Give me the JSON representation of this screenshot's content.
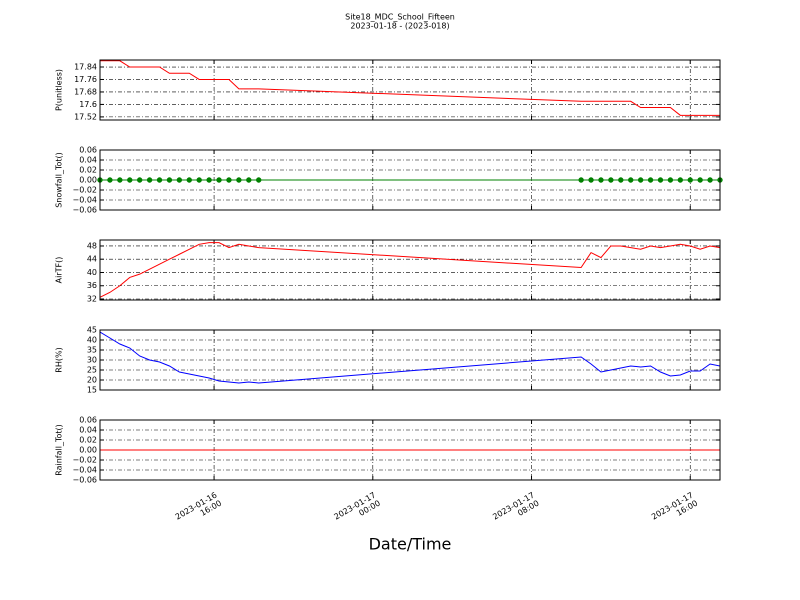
{
  "chart_data": [
    {
      "type": "line",
      "title": "Site18_MDC_School_Fifteen",
      "subtitle": "2023-01-18 - (2023-018)",
      "ylabel": "P(unitless)",
      "color": "#ff0000",
      "marker": false,
      "x": [
        "2023-01-16 10:15",
        "2023-01-16 10:45",
        "2023-01-16 11:15",
        "2023-01-16 11:45",
        "2023-01-16 12:15",
        "2023-01-16 12:45",
        "2023-01-16 13:15",
        "2023-01-16 13:45",
        "2023-01-16 14:15",
        "2023-01-16 14:45",
        "2023-01-16 15:15",
        "2023-01-16 15:45",
        "2023-01-16 16:15",
        "2023-01-16 16:45",
        "2023-01-16 17:15",
        "2023-01-16 17:45",
        "2023-01-16 18:15",
        "2023-01-17 10:30",
        "2023-01-17 11:00",
        "2023-01-17 11:30",
        "2023-01-17 12:00",
        "2023-01-17 12:30",
        "2023-01-17 13:00",
        "2023-01-17 13:30",
        "2023-01-17 14:00",
        "2023-01-17 14:30",
        "2023-01-17 15:00",
        "2023-01-17 15:30",
        "2023-01-17 16:00",
        "2023-01-17 16:30",
        "2023-01-17 17:00",
        "2023-01-17 17:30"
      ],
      "values": [
        17.88,
        17.88,
        17.88,
        17.84,
        17.84,
        17.84,
        17.84,
        17.8,
        17.8,
        17.8,
        17.76,
        17.76,
        17.76,
        17.76,
        17.7,
        17.7,
        17.7,
        17.62,
        17.62,
        17.62,
        17.62,
        17.62,
        17.62,
        17.58,
        17.58,
        17.58,
        17.58,
        17.53,
        17.53,
        17.53,
        17.53,
        17.53
      ],
      "xlim": [
        "2023-01-16 10:15",
        "2023-01-17 17:30"
      ],
      "ylim": [
        17.5,
        17.885
      ],
      "yticks": [
        17.52,
        17.6,
        {
          "value": 17.68,
          "label": "17.68"
        },
        17.76,
        17.84
      ]
    },
    {
      "type": "line",
      "ylabel": "Snowfall_Tot()",
      "color": "#008000",
      "marker": true,
      "x": [
        "2023-01-16 10:15",
        "2023-01-16 10:45",
        "2023-01-16 11:15",
        "2023-01-16 11:45",
        "2023-01-16 12:15",
        "2023-01-16 12:45",
        "2023-01-16 13:15",
        "2023-01-16 13:45",
        "2023-01-16 14:15",
        "2023-01-16 14:45",
        "2023-01-16 15:15",
        "2023-01-16 15:45",
        "2023-01-16 16:15",
        "2023-01-16 16:45",
        "2023-01-16 17:15",
        "2023-01-16 17:45",
        "2023-01-16 18:15",
        "2023-01-17 10:30",
        "2023-01-17 11:00",
        "2023-01-17 11:30",
        "2023-01-17 12:00",
        "2023-01-17 12:30",
        "2023-01-17 13:00",
        "2023-01-17 13:30",
        "2023-01-17 14:00",
        "2023-01-17 14:30",
        "2023-01-17 15:00",
        "2023-01-17 15:30",
        "2023-01-17 16:00",
        "2023-01-17 16:30",
        "2023-01-17 17:00",
        "2023-01-17 17:30"
      ],
      "values": [
        0,
        0,
        0,
        0,
        0,
        0,
        0,
        0,
        0,
        0,
        0,
        0,
        0,
        0,
        0,
        0,
        0,
        0,
        0,
        0,
        0,
        0,
        0,
        0,
        0,
        0,
        0,
        0,
        0,
        0,
        0,
        0
      ],
      "xlim": [
        "2023-01-16 10:15",
        "2023-01-17 17:30"
      ],
      "ylim": [
        -0.06,
        0.06
      ],
      "yticks": [
        {
          "value": -0.06,
          "label": "−0.06"
        },
        {
          "value": -0.04,
          "label": "−0.04"
        },
        {
          "value": -0.02,
          "label": "−0.02"
        },
        {
          "value": 0,
          "label": "0.00"
        },
        0.02,
        0.04,
        0.06
      ]
    },
    {
      "type": "line",
      "ylabel": "AirTF()",
      "color": "#ff0000",
      "marker": false,
      "x": [
        "2023-01-16 10:15",
        "2023-01-16 10:45",
        "2023-01-16 11:15",
        "2023-01-16 11:45",
        "2023-01-16 12:15",
        "2023-01-16 12:45",
        "2023-01-16 13:15",
        "2023-01-16 13:45",
        "2023-01-16 14:15",
        "2023-01-16 14:45",
        "2023-01-16 15:15",
        "2023-01-16 15:45",
        "2023-01-16 16:15",
        "2023-01-16 16:45",
        "2023-01-16 17:15",
        "2023-01-16 17:45",
        "2023-01-16 18:15",
        "2023-01-17 10:30",
        "2023-01-17 11:00",
        "2023-01-17 11:30",
        "2023-01-17 12:00",
        "2023-01-17 12:30",
        "2023-01-17 13:00",
        "2023-01-17 13:30",
        "2023-01-17 14:00",
        "2023-01-17 14:30",
        "2023-01-17 15:00",
        "2023-01-17 15:30",
        "2023-01-17 16:00",
        "2023-01-17 16:30",
        "2023-01-17 17:00",
        "2023-01-17 17:30"
      ],
      "values": [
        32.5,
        34,
        36,
        38.5,
        39.5,
        41,
        42.5,
        44,
        45.5,
        47,
        48.5,
        49,
        49,
        47.5,
        48.5,
        48,
        47.5,
        41.5,
        46,
        44.5,
        48,
        48,
        47.5,
        47,
        48,
        47.5,
        48,
        48.5,
        48,
        47,
        48,
        47.5
      ],
      "xlim": [
        "2023-01-16 10:15",
        "2023-01-17 17:30"
      ],
      "ylim": [
        31.7,
        49.8
      ],
      "yticks": [
        32,
        36,
        40,
        44,
        48
      ]
    },
    {
      "type": "line",
      "ylabel": "RH(%)",
      "color": "#0000ff",
      "marker": false,
      "x": [
        "2023-01-16 10:15",
        "2023-01-16 10:45",
        "2023-01-16 11:15",
        "2023-01-16 11:45",
        "2023-01-16 12:15",
        "2023-01-16 12:45",
        "2023-01-16 13:15",
        "2023-01-16 13:45",
        "2023-01-16 14:15",
        "2023-01-16 14:45",
        "2023-01-16 15:15",
        "2023-01-16 15:45",
        "2023-01-16 16:15",
        "2023-01-16 16:45",
        "2023-01-16 17:15",
        "2023-01-16 17:45",
        "2023-01-16 18:15",
        "2023-01-17 10:30",
        "2023-01-17 11:00",
        "2023-01-17 11:30",
        "2023-01-17 12:00",
        "2023-01-17 12:30",
        "2023-01-17 13:00",
        "2023-01-17 13:30",
        "2023-01-17 14:00",
        "2023-01-17 14:30",
        "2023-01-17 15:00",
        "2023-01-17 15:30",
        "2023-01-17 16:00",
        "2023-01-17 16:30",
        "2023-01-17 17:00",
        "2023-01-17 17:30"
      ],
      "values": [
        44,
        41,
        38,
        36,
        32,
        30,
        29,
        27,
        24,
        23,
        22,
        21,
        19.5,
        19,
        18.5,
        19,
        18.5,
        31.5,
        28,
        24,
        25,
        26,
        27,
        26.5,
        27,
        24,
        22,
        22.5,
        24.5,
        24.5,
        28,
        27
      ],
      "xlim": [
        "2023-01-16 10:15",
        "2023-01-17 17:30"
      ],
      "ylim": [
        15,
        45
      ],
      "yticks": [
        15,
        20,
        25,
        30,
        35,
        40,
        45
      ]
    },
    {
      "type": "line",
      "ylabel": "Rainfall_Tot()",
      "xlabel": "Date/Time",
      "color": "#ff0000",
      "marker": false,
      "x": [
        "2023-01-16 10:15",
        "2023-01-16 10:45",
        "2023-01-16 11:15",
        "2023-01-16 11:45",
        "2023-01-16 12:15",
        "2023-01-16 12:45",
        "2023-01-16 13:15",
        "2023-01-16 13:45",
        "2023-01-16 14:15",
        "2023-01-16 14:45",
        "2023-01-16 15:15",
        "2023-01-16 15:45",
        "2023-01-16 16:15",
        "2023-01-16 16:45",
        "2023-01-16 17:15",
        "2023-01-16 17:45",
        "2023-01-16 18:15",
        "2023-01-17 10:30",
        "2023-01-17 11:00",
        "2023-01-17 11:30",
        "2023-01-17 12:00",
        "2023-01-17 12:30",
        "2023-01-17 13:00",
        "2023-01-17 13:30",
        "2023-01-17 14:00",
        "2023-01-17 14:30",
        "2023-01-17 15:00",
        "2023-01-17 15:30",
        "2023-01-17 16:00",
        "2023-01-17 16:30",
        "2023-01-17 17:00",
        "2023-01-17 17:30"
      ],
      "values": [
        0,
        0,
        0,
        0,
        0,
        0,
        0,
        0,
        0,
        0,
        0,
        0,
        0,
        0,
        0,
        0,
        0,
        0,
        0,
        0,
        0,
        0,
        0,
        0,
        0,
        0,
        0,
        0,
        0,
        0,
        0,
        0
      ],
      "xlim": [
        "2023-01-16 10:15",
        "2023-01-17 17:30"
      ],
      "ylim": [
        -0.06,
        0.06
      ],
      "yticks": [
        {
          "value": -0.06,
          "label": "−0.06"
        },
        {
          "value": -0.04,
          "label": "−0.04"
        },
        {
          "value": -0.02,
          "label": "−0.02"
        },
        {
          "value": 0,
          "label": "0.00"
        },
        0.02,
        0.04,
        0.06
      ],
      "xticks": [
        "2023-01-16 16:00",
        "2023-01-17 00:00",
        "2023-01-17 08:00",
        "2023-01-17 16:00"
      ]
    }
  ]
}
